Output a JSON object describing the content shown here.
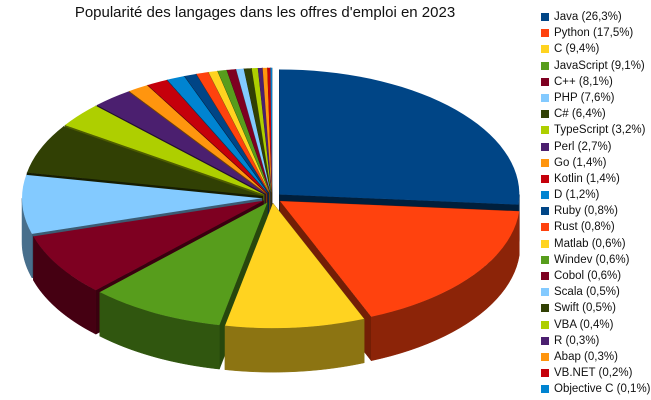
{
  "chart_data": {
    "type": "pie",
    "style": "3d-exploded",
    "title": "Popularité des langages dans les offres d'emploi en 2023",
    "unit": "%",
    "legend_position": "right",
    "slices": [
      {
        "name": "Java",
        "value": 26.3,
        "label": "Java (26,3%)",
        "color": "#004586"
      },
      {
        "name": "Python",
        "value": 17.5,
        "label": "Python (17,5%)",
        "color": "#ff420e"
      },
      {
        "name": "C",
        "value": 9.4,
        "label": "C (9,4%)",
        "color": "#ffd320"
      },
      {
        "name": "JavaScript",
        "value": 9.1,
        "label": "JavaScript (9,1%)",
        "color": "#579d1c"
      },
      {
        "name": "C++",
        "value": 8.1,
        "label": "C++ (8,1%)",
        "color": "#7e0021"
      },
      {
        "name": "PHP",
        "value": 7.6,
        "label": "PHP (7,6%)",
        "color": "#83caff"
      },
      {
        "name": "C#",
        "value": 6.4,
        "label": "C# (6,4%)",
        "color": "#314004"
      },
      {
        "name": "TypeScript",
        "value": 3.2,
        "label": "TypeScript (3,2%)",
        "color": "#aecf00"
      },
      {
        "name": "Perl",
        "value": 2.7,
        "label": "Perl (2,7%)",
        "color": "#4b1f6f"
      },
      {
        "name": "Go",
        "value": 1.4,
        "label": "Go (1,4%)",
        "color": "#ff950e"
      },
      {
        "name": "Kotlin",
        "value": 1.4,
        "label": "Kotlin (1,4%)",
        "color": "#c5000b"
      },
      {
        "name": "D",
        "value": 1.2,
        "label": "D (1,2%)",
        "color": "#0084d1"
      },
      {
        "name": "Ruby",
        "value": 0.8,
        "label": "Ruby (0,8%)",
        "color": "#004586"
      },
      {
        "name": "Rust",
        "value": 0.8,
        "label": "Rust (0,8%)",
        "color": "#ff420e"
      },
      {
        "name": "Matlab",
        "value": 0.6,
        "label": "Matlab (0,6%)",
        "color": "#ffd320"
      },
      {
        "name": "Windev",
        "value": 0.6,
        "label": "Windev (0,6%)",
        "color": "#579d1c"
      },
      {
        "name": "Cobol",
        "value": 0.6,
        "label": "Cobol (0,6%)",
        "color": "#7e0021"
      },
      {
        "name": "Scala",
        "value": 0.5,
        "label": "Scala (0,5%)",
        "color": "#83caff"
      },
      {
        "name": "Swift",
        "value": 0.5,
        "label": "Swift (0,5%)",
        "color": "#314004"
      },
      {
        "name": "VBA",
        "value": 0.4,
        "label": "VBA (0,4%)",
        "color": "#aecf00"
      },
      {
        "name": "R",
        "value": 0.3,
        "label": "R (0,3%)",
        "color": "#4b1f6f"
      },
      {
        "name": "Abap",
        "value": 0.3,
        "label": "Abap (0,3%)",
        "color": "#ff950e"
      },
      {
        "name": "VB.NET",
        "value": 0.2,
        "label": "VB.NET (0,2%)",
        "color": "#c5000b"
      },
      {
        "name": "Objective C",
        "value": 0.1,
        "label": "Objective C (0,1%)",
        "color": "#0084d1"
      }
    ]
  }
}
